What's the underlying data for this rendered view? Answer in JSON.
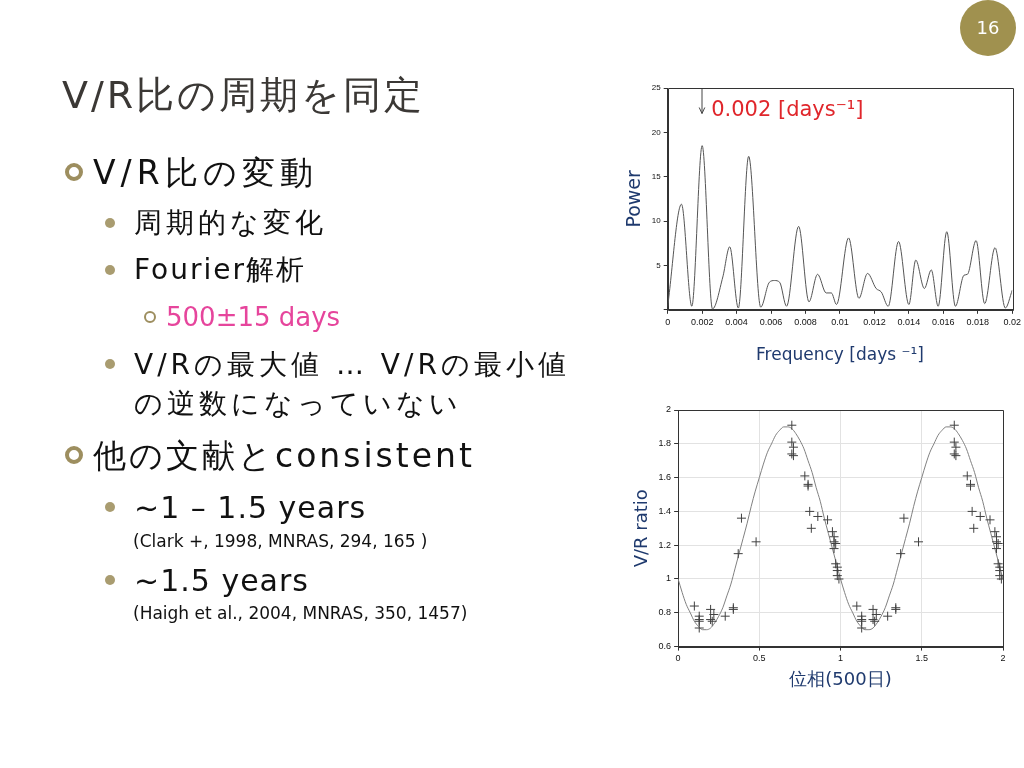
{
  "chart_data": [
    {
      "type": "other",
      "title": "V/R比の周期を同定",
      "annotations": [
        "V/R比の変動",
        "周期的な変化",
        "Fourier解析",
        "500±15 days",
        "V/Rの最大値 … V/Rの最小値の逆数になっていない",
        "他の文献とconsistent",
        "~1 – 1.5 years",
        "(Clark +, 1998, MNRAS, 294, 165 )",
        "~1.5 years",
        "(Haigh et al., 2004, MNRAS, 350, 1457)",
        "16"
      ]
    },
    {
      "type": "line",
      "xlabel": "Frequency [days ⁻¹]",
      "ylabel": "Power",
      "x": [
        0,
        0.0008,
        0.0014,
        0.002,
        0.0026,
        0.0032,
        0.0036,
        0.0041,
        0.0047,
        0.0054,
        0.0059,
        0.0062,
        0.0065,
        0.0069,
        0.0076,
        0.0082,
        0.0087,
        0.0092,
        0.0095,
        0.0098,
        0.0105,
        0.0111,
        0.0116,
        0.0121,
        0.0124,
        0.0128,
        0.0134,
        0.014,
        0.0144,
        0.0149,
        0.0153,
        0.0157,
        0.0162,
        0.0167,
        0.0172,
        0.0174,
        0.0179,
        0.0184,
        0.019,
        0.0196,
        0.02
      ],
      "series": [
        {
          "color": "#555555",
          "values": [
            0.4,
            11.9,
            0.4,
            18.5,
            0.1,
            3.7,
            7.1,
            0.2,
            17.3,
            0.3,
            3.1,
            3.3,
            3.1,
            0.4,
            9.4,
            0.9,
            4.0,
            1.9,
            1.9,
            0.6,
            8.1,
            1.3,
            4.1,
            2.4,
            2.0,
            0.4,
            7.7,
            0.6,
            5.6,
            2.4,
            4.5,
            0.4,
            8.8,
            0.4,
            3.9,
            4.0,
            7.8,
            0.7,
            7.0,
            0.2,
            2.2
          ]
        }
      ],
      "xlim": [
        0,
        0.02
      ],
      "ylim": [
        0,
        25
      ],
      "xticks": [
        0,
        0.002,
        0.004,
        0.006,
        0.008,
        0.01,
        0.012,
        0.014,
        0.016,
        0.018,
        0.02
      ],
      "yticks": [
        {
          "value": 0,
          "label": null
        },
        5,
        10,
        15,
        20,
        25
      ],
      "annotations": [
        {
          "text": "0.002 [days⁻¹]",
          "x": 0.002,
          "y": 18.5
        }
      ]
    },
    {
      "type": "scatter",
      "xlabel": "位相(500日)",
      "ylabel": "V/R ratio",
      "series": [
        {
          "type": "scatter",
          "color": "#404040",
          "marker": "cross",
          "x": [
            0.1,
            0.13,
            0.13,
            0.13,
            0.13,
            0.2,
            0.2,
            0.21,
            0.22,
            0.29,
            0.34,
            0.34,
            0.37,
            0.39,
            0.48,
            0.7,
            0.7,
            0.71,
            0.7,
            0.71,
            0.78,
            0.8,
            0.8,
            0.81,
            0.82,
            0.86,
            0.92,
            0.95,
            0.96,
            0.96,
            0.97,
            0.96,
            0.97,
            0.98,
            0.98,
            0.98,
            0.99,
            1.1,
            1.13,
            1.13,
            1.13,
            1.13,
            1.2,
            1.2,
            1.21,
            1.22,
            1.29,
            1.34,
            1.34,
            1.37,
            1.39,
            1.48,
            1.7,
            1.7,
            1.71,
            1.7,
            1.71,
            1.78,
            1.8,
            1.8,
            1.81,
            1.82,
            1.86,
            1.92,
            1.95,
            1.96,
            1.96,
            1.97,
            1.96,
            1.97,
            1.98,
            1.98,
            1.98,
            1.99
          ],
          "values": [
            0.84,
            0.78,
            0.76,
            0.75,
            0.71,
            0.82,
            0.76,
            0.75,
            0.79,
            0.78,
            0.83,
            0.82,
            1.15,
            1.36,
            1.22,
            1.91,
            1.81,
            1.78,
            1.74,
            1.73,
            1.61,
            1.56,
            1.55,
            1.4,
            1.3,
            1.37,
            1.35,
            1.28,
            1.25,
            1.22,
            1.21,
            1.18,
            1.09,
            1.07,
            1.05,
            1.02,
            1.0,
            0.84,
            0.78,
            0.76,
            0.75,
            0.71,
            0.82,
            0.76,
            0.75,
            0.79,
            0.78,
            0.83,
            0.82,
            1.15,
            1.36,
            1.22,
            1.91,
            1.81,
            1.78,
            1.74,
            1.73,
            1.61,
            1.56,
            1.55,
            1.4,
            1.3,
            1.37,
            1.35,
            1.28,
            1.25,
            1.22,
            1.21,
            1.18,
            1.09,
            1.07,
            1.05,
            1.02,
            1.0
          ]
        },
        {
          "type": "line",
          "color": "#808080",
          "x": [
            0,
            0.025,
            0.05,
            0.075,
            0.1,
            0.125,
            0.15,
            0.175,
            0.2,
            0.225,
            0.25,
            0.275,
            0.3,
            0.325,
            0.35,
            0.375,
            0.4,
            0.425,
            0.45,
            0.475,
            0.5,
            0.525,
            0.55,
            0.575,
            0.6,
            0.625,
            0.65,
            0.675,
            0.7,
            0.725,
            0.75,
            0.775,
            0.8,
            0.825,
            0.85,
            0.875,
            0.9,
            0.925,
            0.95,
            0.975,
            1,
            1.025,
            1.05,
            1.075,
            1.1,
            1.125,
            1.15,
            1.175,
            1.2,
            1.225,
            1.25,
            1.275,
            1.3,
            1.325,
            1.35,
            1.375,
            1.4,
            1.425,
            1.45,
            1.475,
            1.5,
            1.525,
            1.55,
            1.575,
            1.6,
            1.625,
            1.65,
            1.675,
            1.7,
            1.725,
            1.75,
            1.775,
            1.8,
            1.825,
            1.85,
            1.875,
            1.9,
            1.925,
            1.95,
            1.975,
            2
          ],
          "values": [
            1.0,
            0.92,
            0.85,
            0.8,
            0.75,
            0.72,
            0.7,
            0.7,
            0.71,
            0.74,
            0.78,
            0.83,
            0.9,
            0.97,
            1.06,
            1.15,
            1.24,
            1.33,
            1.43,
            1.52,
            1.6,
            1.68,
            1.75,
            1.8,
            1.85,
            1.88,
            1.9,
            1.9,
            1.89,
            1.86,
            1.82,
            1.77,
            1.7,
            1.63,
            1.54,
            1.46,
            1.36,
            1.27,
            1.18,
            1.09,
            1.0,
            0.92,
            0.85,
            0.8,
            0.75,
            0.72,
            0.7,
            0.7,
            0.71,
            0.74,
            0.78,
            0.83,
            0.9,
            0.97,
            1.06,
            1.15,
            1.24,
            1.33,
            1.43,
            1.52,
            1.6,
            1.68,
            1.75,
            1.8,
            1.85,
            1.88,
            1.9,
            1.9,
            1.89,
            1.86,
            1.82,
            1.77,
            1.7,
            1.63,
            1.54,
            1.46,
            1.36,
            1.27,
            1.18,
            1.09,
            1.0
          ]
        }
      ],
      "xlim": [
        0,
        2
      ],
      "ylim": [
        0.6,
        2
      ],
      "xticks": [
        0,
        0.5,
        1,
        1.5,
        2
      ],
      "yticks": [
        0.6,
        0.8,
        1,
        1.2,
        1.4,
        1.6,
        1.8,
        2
      ],
      "grid": true
    }
  ]
}
